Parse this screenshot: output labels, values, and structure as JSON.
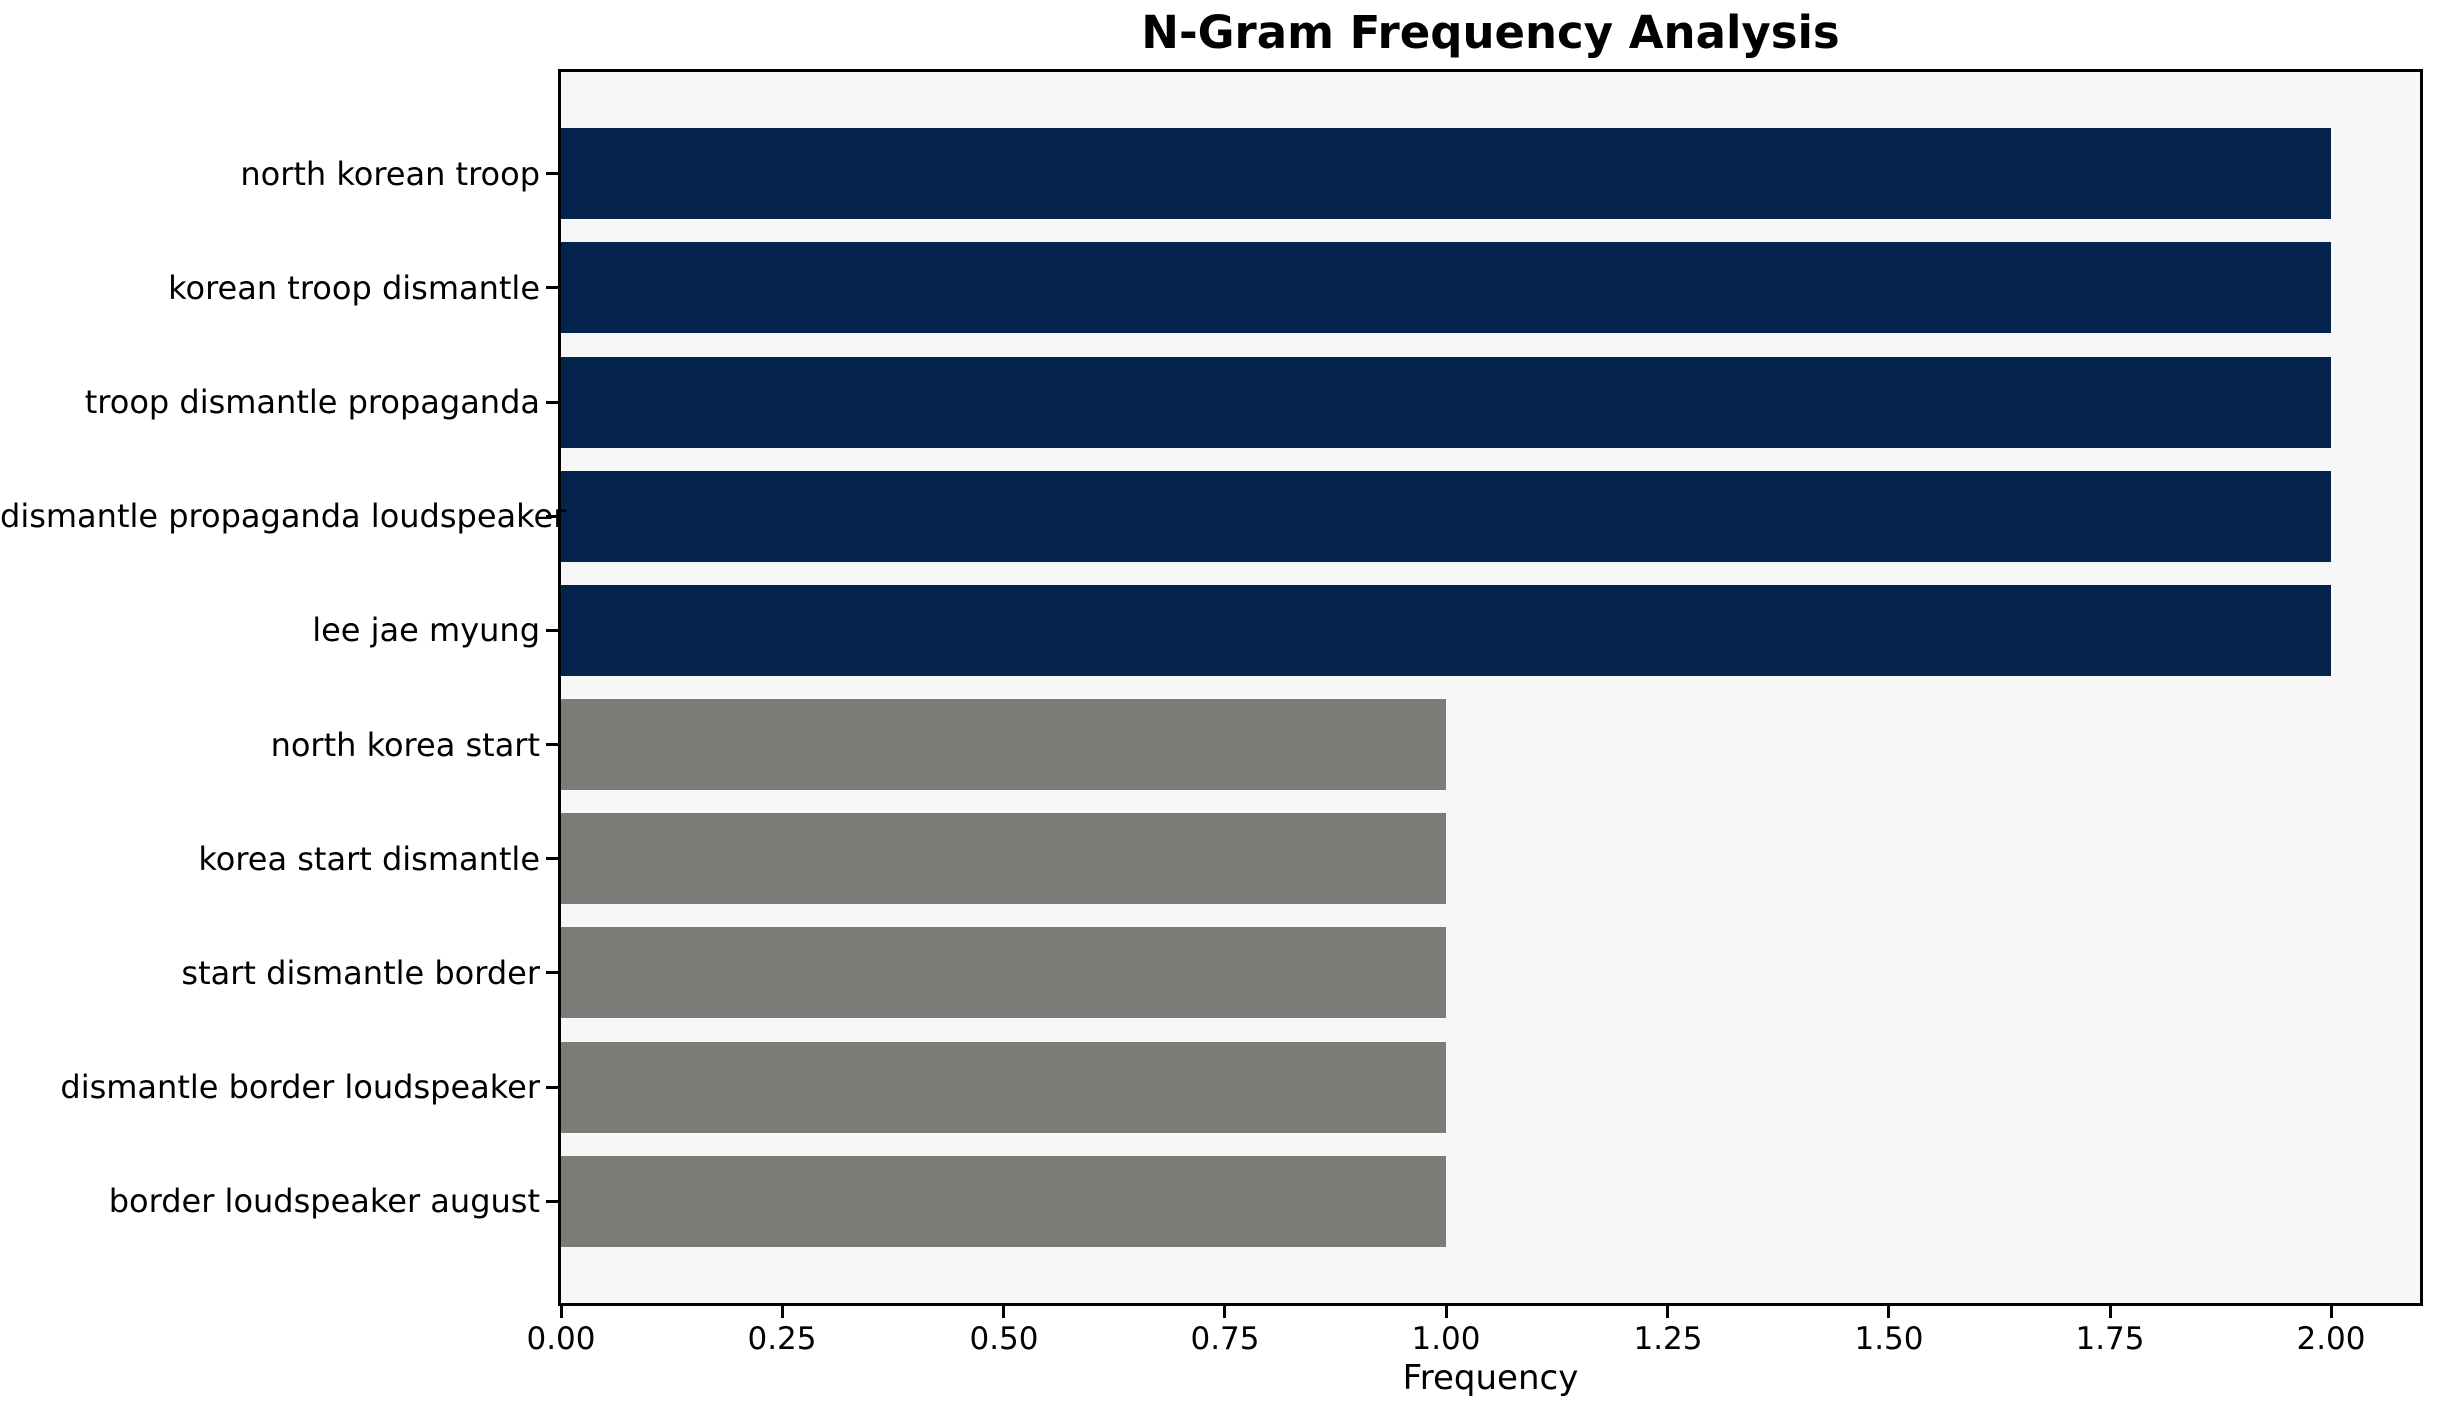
{
  "chart_data": {
    "type": "bar",
    "orientation": "horizontal",
    "title": "N-Gram Frequency Analysis",
    "xlabel": "Frequency",
    "ylabel": "",
    "categories": [
      "north korean troop",
      "korean troop dismantle",
      "troop dismantle propaganda",
      "dismantle propaganda loudspeaker",
      "lee jae myung",
      "north korea start",
      "korea start dismantle",
      "start dismantle border",
      "dismantle border loudspeaker",
      "border loudspeaker august"
    ],
    "values": [
      2,
      2,
      2,
      2,
      2,
      1,
      1,
      1,
      1,
      1
    ],
    "bar_colors": [
      "#04234d",
      "#04234d",
      "#04234d",
      "#04234d",
      "#04234d",
      "#7b7b78",
      "#7b7b78",
      "#7b7b78",
      "#7b7b78",
      "#7b7b78"
    ],
    "xlim": [
      0,
      2.1
    ],
    "xtick_labels": [
      "0.00",
      "0.25",
      "0.50",
      "0.75",
      "1.00",
      "1.25",
      "1.50",
      "1.75",
      "2.00"
    ],
    "xtick_values": [
      0,
      0.25,
      0.5,
      0.75,
      1.0,
      1.25,
      1.5,
      1.75,
      2.0
    ],
    "grid": false,
    "legend": null,
    "colors": {
      "highlight_bar": "#04234d",
      "default_bar": "#7b7b78",
      "plot_background": "#f7f7f7",
      "figure_background": "#ffffff",
      "spine": "#000000",
      "text": "#000000"
    }
  }
}
